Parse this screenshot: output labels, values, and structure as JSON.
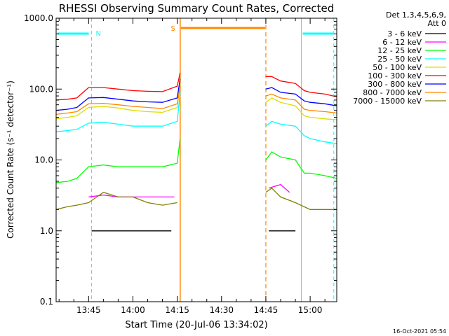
{
  "chart_data": {
    "type": "line",
    "title": "RHESSI Observing Summary Count Rates, Corrected",
    "xlabel": "Start Time (20-Jul-06 13:34:02)",
    "ylabel": "Corrected Count Rate (s⁻¹ detector⁻¹)",
    "yscale": "log",
    "ylim": [
      0.1,
      1000
    ],
    "xlim": [
      "13:34",
      "15:09"
    ],
    "grid": false,
    "legend_position": "top-right",
    "yticks": [
      "0.1",
      "1.0",
      "10.0",
      "100.0",
      "1000.0"
    ],
    "xticks": [
      "13:45",
      "14:00",
      "14:15",
      "14:30",
      "14:45",
      "15:00"
    ],
    "legend_header": [
      "Det 1,3,4,5,6,9,",
      "Att 0"
    ],
    "footer": "16-Oct-2021 05:54",
    "series": [
      {
        "name": "3 - 6 keV",
        "color": "#000000",
        "segments": [
          {
            "x": [
              "13:46",
              "13:50",
              "13:55",
              "14:00",
              "14:05",
              "14:10",
              "14:13"
            ],
            "y": [
              1.0,
              1.0,
              1.0,
              1.0,
              1.0,
              1.0,
              1.0
            ]
          },
          {
            "x": [
              "14:46",
              "14:50",
              "14:55"
            ],
            "y": [
              1.0,
              1.0,
              1.0
            ]
          }
        ]
      },
      {
        "name": "6 - 12 keV",
        "color": "#ff00ff",
        "segments": [
          {
            "x": [
              "13:45",
              "13:50",
              "13:55",
              "14:00",
              "14:05",
              "14:10",
              "14:14"
            ],
            "y": [
              3.0,
              3.2,
              3.0,
              3.0,
              3.0,
              3.0,
              3.0
            ]
          },
          {
            "x": [
              "14:46",
              "14:50",
              "14:53"
            ],
            "y": [
              4.0,
              4.5,
              3.5
            ]
          }
        ]
      },
      {
        "name": "12 - 25 keV",
        "color": "#00ff00",
        "segments": [
          {
            "x": [
              "13:34",
              "13:38",
              "13:41",
              "13:45",
              "13:50",
              "13:55",
              "14:00",
              "14:05",
              "14:10",
              "14:15",
              "14:16"
            ],
            "y": [
              4.8,
              5.0,
              5.5,
              8.0,
              8.5,
              8.0,
              8.0,
              8.0,
              8.0,
              9.0,
              20.0
            ]
          },
          {
            "x": [
              "14:45",
              "14:47",
              "14:50",
              "14:55",
              "14:58",
              "15:00",
              "15:05",
              "15:09"
            ],
            "y": [
              10.0,
              13.0,
              11.0,
              10.0,
              6.5,
              6.5,
              6.0,
              5.5
            ]
          }
        ]
      },
      {
        "name": "25 - 50 keV",
        "color": "#00ffff",
        "segments": [
          {
            "x": [
              "13:34",
              "13:38",
              "13:41",
              "13:45",
              "13:50",
              "13:55",
              "14:00",
              "14:05",
              "14:10",
              "14:15",
              "14:16"
            ],
            "y": [
              25.0,
              26.0,
              27.0,
              33.0,
              34.0,
              32.0,
              30.0,
              30.0,
              30.0,
              35.0,
              90.0
            ]
          },
          {
            "x": [
              "14:45",
              "14:47",
              "14:50",
              "14:55",
              "14:58",
              "15:00",
              "15:05",
              "15:09"
            ],
            "y": [
              30.0,
              35.0,
              32.0,
              30.0,
              22.0,
              20.0,
              18.0,
              17.0
            ]
          }
        ]
      },
      {
        "name": "50 - 100 keV",
        "color": "#dddd00",
        "segments": [
          {
            "x": [
              "13:34",
              "13:38",
              "13:41",
              "13:45",
              "13:50",
              "13:55",
              "14:00",
              "14:05",
              "14:10",
              "14:15",
              "14:16"
            ],
            "y": [
              38.0,
              40.0,
              42.0,
              55.0,
              57.0,
              54.0,
              50.0,
              48.0,
              47.0,
              55.0,
              120.0
            ]
          },
          {
            "x": [
              "14:45",
              "14:47",
              "14:50",
              "14:55",
              "14:58",
              "15:00",
              "15:05",
              "15:09"
            ],
            "y": [
              65.0,
              75.0,
              65.0,
              58.0,
              42.0,
              40.0,
              38.0,
              37.0
            ]
          }
        ]
      },
      {
        "name": "100 - 300 keV",
        "color": "#ff0000",
        "segments": [
          {
            "x": [
              "13:34",
              "13:38",
              "13:41",
              "13:45",
              "13:50",
              "13:55",
              "14:00",
              "14:05",
              "14:10",
              "14:15",
              "14:16"
            ],
            "y": [
              70.0,
              72.0,
              75.0,
              105.0,
              105.0,
              100.0,
              95.0,
              93.0,
              92.0,
              110.0,
              170.0
            ]
          },
          {
            "x": [
              "14:45",
              "14:47",
              "14:50",
              "14:55",
              "14:58",
              "15:00",
              "15:05",
              "15:09"
            ],
            "y": [
              150.0,
              150.0,
              130.0,
              120.0,
              95.0,
              90.0,
              85.0,
              78.0
            ]
          }
        ]
      },
      {
        "name": "300 - 800 keV",
        "color": "#0000ff",
        "segments": [
          {
            "x": [
              "13:34",
              "13:38",
              "13:41",
              "13:45",
              "13:50",
              "13:55",
              "14:00",
              "14:05",
              "14:10",
              "14:15",
              "14:16"
            ],
            "y": [
              50.0,
              52.0,
              55.0,
              75.0,
              76.0,
              72.0,
              68.0,
              66.0,
              65.0,
              75.0,
              140.0
            ]
          },
          {
            "x": [
              "14:45",
              "14:47",
              "14:50",
              "14:55",
              "14:58",
              "15:00",
              "15:05",
              "15:09"
            ],
            "y": [
              100.0,
              105.0,
              90.0,
              85.0,
              68.0,
              65.0,
              62.0,
              58.0
            ]
          }
        ]
      },
      {
        "name": "800 - 7000 keV",
        "color": "#ff8800",
        "segments": [
          {
            "x": [
              "13:34",
              "13:38",
              "13:41",
              "13:45",
              "13:50",
              "13:55",
              "14:00",
              "14:05",
              "14:10",
              "14:15",
              "14:16"
            ],
            "y": [
              44.0,
              46.0,
              48.0,
              62.0,
              63.0,
              60.0,
              57.0,
              55.0,
              53.0,
              62.0,
              110.0
            ]
          },
          {
            "x": [
              "14:45",
              "14:47",
              "14:50",
              "14:55",
              "14:58",
              "15:00",
              "15:05",
              "15:09"
            ],
            "y": [
              80.0,
              85.0,
              75.0,
              70.0,
              52.0,
              50.0,
              48.0,
              46.0
            ]
          }
        ]
      },
      {
        "name": "7000 - 15000 keV",
        "color": "#808000",
        "segments": [
          {
            "x": [
              "13:34",
              "13:38",
              "13:41",
              "13:45",
              "13:50",
              "13:55",
              "14:00",
              "14:05",
              "14:10",
              "14:15"
            ],
            "y": [
              2.0,
              2.2,
              2.3,
              2.5,
              3.5,
              3.0,
              3.0,
              2.5,
              2.3,
              2.5
            ]
          },
          {
            "x": [
              "14:45",
              "14:47",
              "14:50",
              "14:55",
              "15:00",
              "15:05",
              "15:09"
            ],
            "y": [
              3.5,
              4.0,
              3.0,
              2.5,
              2.0,
              2.0,
              2.0
            ]
          }
        ]
      }
    ],
    "annotations": {
      "night_markers": {
        "label": "N",
        "color": "#00ffff",
        "intervals": [
          [
            "13:34",
            "13:46"
          ],
          [
            "14:57",
            "15:08"
          ]
        ]
      },
      "saa_markers": {
        "label": "S",
        "color": "#ff8800",
        "interval": [
          "14:16",
          "14:45"
        ]
      }
    }
  }
}
